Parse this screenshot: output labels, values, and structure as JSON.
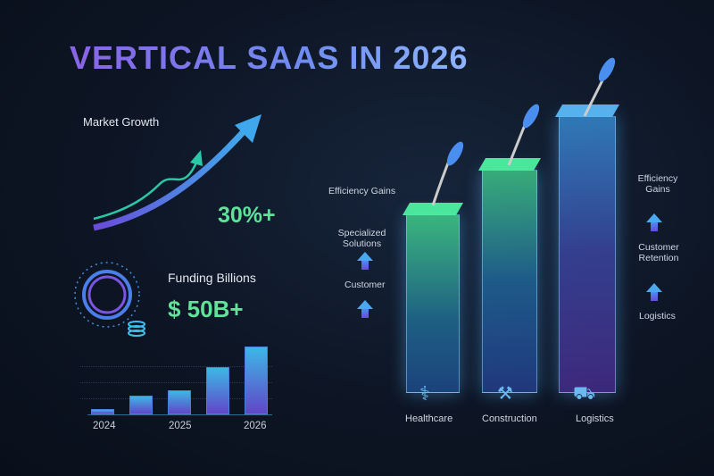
{
  "title": "VERTICAL SAAS IN 2026",
  "market": {
    "label": "Market Growth",
    "value": "30%+"
  },
  "funding": {
    "label": "Funding Billions",
    "value": "$ 50B+"
  },
  "chart_data": {
    "type": "bar",
    "title": "",
    "xlabel": "",
    "ylabel": "",
    "tick_labels": [
      "2024",
      "2025",
      "2026"
    ],
    "values": [
      8,
      28,
      36,
      70,
      100
    ],
    "colors": {
      "top": "#3db7e6",
      "bottom": "#6146c8"
    }
  },
  "pillars": [
    {
      "label": "Healthcare",
      "icon": "caduceus-icon"
    },
    {
      "label": "Construction",
      "icon": "tools-icon"
    },
    {
      "label": "Logistics",
      "icon": "truck-icon"
    }
  ],
  "left_labels": [
    "Efficiency Gains",
    "Specialized Solutions",
    "Customer"
  ],
  "right_labels": [
    "Efficiency Gains",
    "Customer Retention",
    "Logistics"
  ],
  "colors": {
    "green": "#5fe39a",
    "accent": "#4aa8f0",
    "purple": "#7a55e0"
  }
}
